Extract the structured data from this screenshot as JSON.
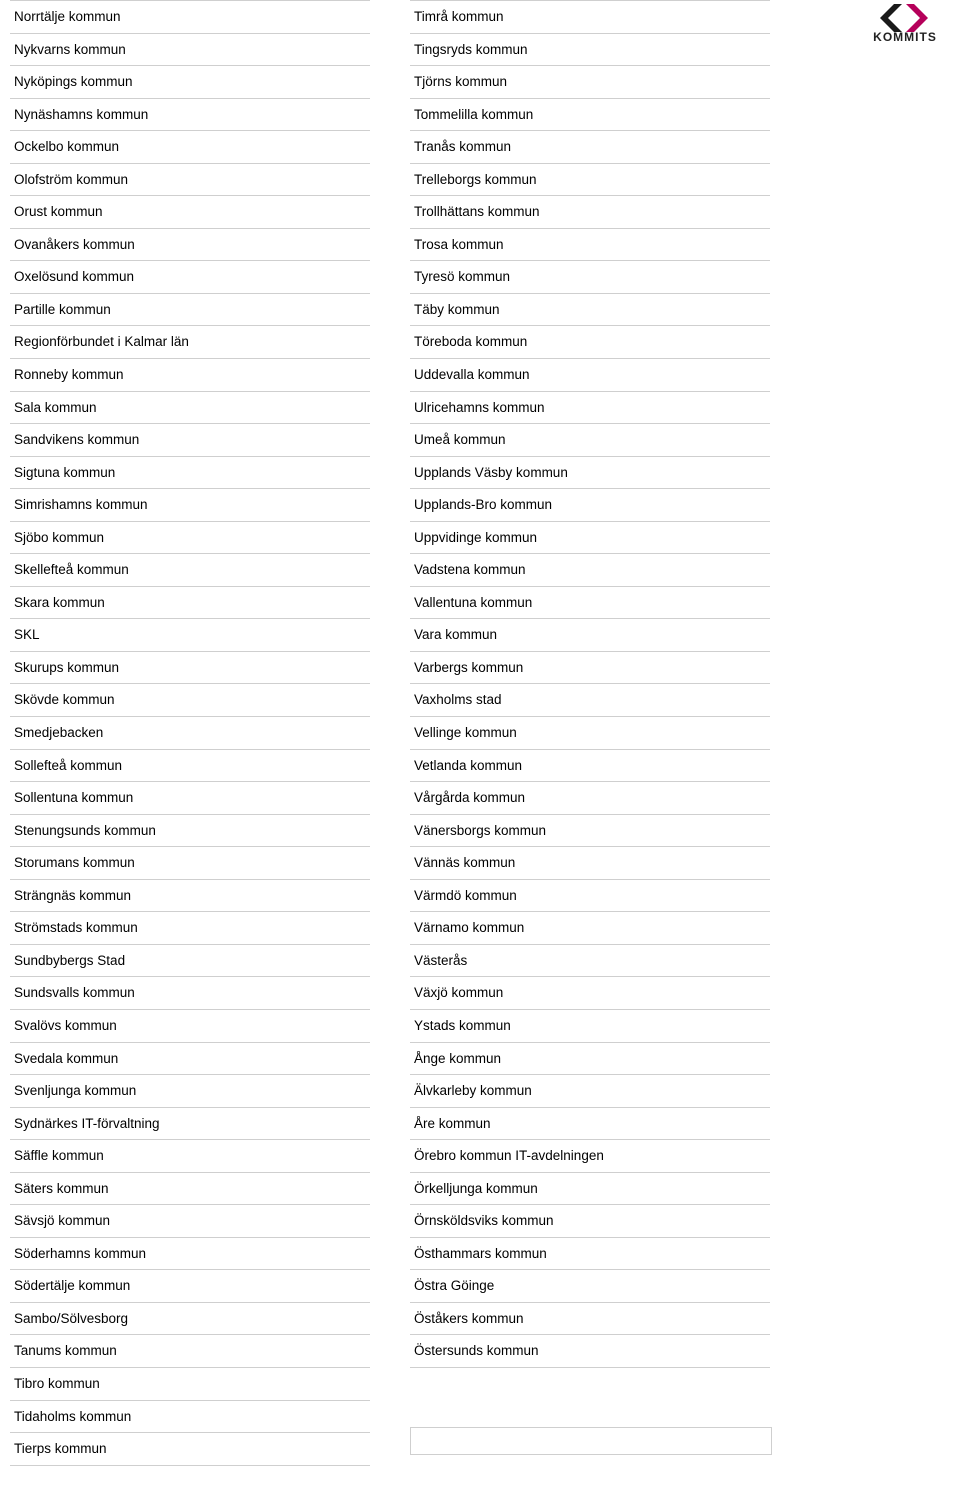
{
  "logo": {
    "text": "KOMMITS",
    "accent_color": "#b5005a",
    "dark_color": "#1a1a1a"
  },
  "columns": {
    "left": [
      "Norrtälje kommun",
      "Nykvarns kommun",
      "Nyköpings kommun",
      "Nynäshamns kommun",
      "Ockelbo kommun",
      "Olofström kommun",
      "Orust kommun",
      "Ovanåkers kommun",
      "Oxelösund kommun",
      "Partille kommun",
      "Regionförbundet i Kalmar län",
      "Ronneby kommun",
      "Sala kommun",
      "Sandvikens kommun",
      "Sigtuna kommun",
      "Simrishamns kommun",
      "Sjöbo kommun",
      "Skellefteå kommun",
      "Skara kommun",
      "SKL",
      "Skurups kommun",
      "Skövde kommun",
      "Smedjebacken",
      "Sollefteå kommun",
      "Sollentuna kommun",
      "Stenungsunds kommun",
      "Storumans kommun",
      "Strängnäs kommun",
      "Strömstads kommun",
      "Sundbybergs Stad",
      "Sundsvalls kommun",
      "Svalövs kommun",
      "Svedala kommun",
      "Svenljunga kommun",
      "Sydnärkes IT-förvaltning",
      "Säffle kommun",
      "Säters kommun",
      "Sävsjö kommun",
      "Söderhamns kommun",
      "Södertälje kommun",
      "Sambo/Sölvesborg",
      "Tanums kommun",
      "Tibro kommun",
      "Tidaholms kommun",
      "Tierps kommun"
    ],
    "right": [
      "Timrå kommun",
      "Tingsryds kommun",
      "Tjörns kommun",
      "Tommelilla kommun",
      "Tranås kommun",
      "Trelleborgs kommun",
      "Trollhättans kommun",
      "Trosa kommun",
      "Tyresö kommun",
      "Täby kommun",
      "Töreboda kommun",
      "Uddevalla kommun",
      "Ulricehamns kommun",
      "Umeå kommun",
      "Upplands Väsby kommun",
      "Upplands-Bro kommun",
      "Uppvidinge kommun",
      "Vadstena kommun",
      "Vallentuna kommun",
      "Vara kommun",
      "Varbergs kommun",
      "Vaxholms stad",
      "Vellinge kommun",
      "Vetlanda kommun",
      "Vårgårda kommun",
      "Vänersborgs kommun",
      "Vännäs kommun",
      "Värmdö kommun",
      "Värnamo kommun",
      "Västerås",
      "Växjö kommun",
      "Ystads kommun",
      "Ånge kommun",
      "Älvkarleby kommun",
      "Åre kommun",
      "Örebro kommun IT-avdelningen",
      "Örkelljunga kommun",
      "Örnsköldsviks kommun",
      "Östhammars kommun",
      "Östra Göinge",
      "Öståkers kommun",
      "Östersunds kommun"
    ]
  }
}
